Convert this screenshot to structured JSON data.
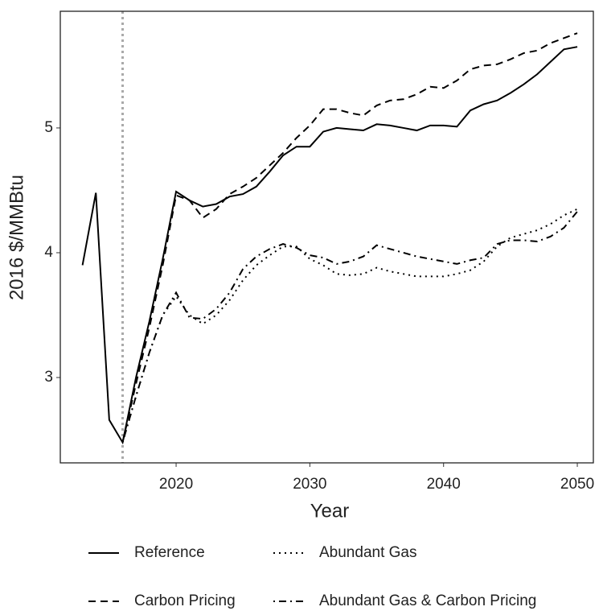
{
  "chart_data": {
    "type": "line",
    "xlabel": "Year",
    "ylabel": "2016 $/MMBtu",
    "x": [
      2013,
      2014,
      2015,
      2016,
      2017,
      2018,
      2019,
      2020,
      2021,
      2022,
      2023,
      2024,
      2025,
      2026,
      2027,
      2028,
      2029,
      2030,
      2031,
      2032,
      2033,
      2034,
      2035,
      2036,
      2037,
      2038,
      2039,
      2040,
      2041,
      2042,
      2043,
      2044,
      2045,
      2046,
      2047,
      2048,
      2049,
      2050
    ],
    "series": [
      {
        "name": "Reference",
        "color": "#000000",
        "dash": "solid",
        "values": [
          3.9,
          4.48,
          2.66,
          2.48,
          3.0,
          3.45,
          3.95,
          4.49,
          4.42,
          4.37,
          4.39,
          4.45,
          4.47,
          4.53,
          4.65,
          4.78,
          4.85,
          4.85,
          4.97,
          5.0,
          4.99,
          4.98,
          5.03,
          5.02,
          5.0,
          4.98,
          5.02,
          5.02,
          5.01,
          5.14,
          5.19,
          5.22,
          5.28,
          5.35,
          5.43,
          5.53,
          5.63,
          5.65
        ]
      },
      {
        "name": "Abundant Gas",
        "color": "#000000",
        "dash": "dotted",
        "values": [
          null,
          null,
          null,
          2.48,
          2.85,
          3.2,
          3.5,
          3.65,
          3.5,
          3.43,
          3.5,
          3.62,
          3.78,
          3.9,
          3.98,
          4.05,
          4.05,
          3.95,
          3.9,
          3.83,
          3.82,
          3.83,
          3.88,
          3.85,
          3.83,
          3.81,
          3.81,
          3.81,
          3.83,
          3.86,
          3.93,
          4.05,
          4.12,
          4.15,
          4.18,
          4.23,
          4.3,
          4.35
        ]
      },
      {
        "name": "Carbon Pricing",
        "color": "#000000",
        "dash": "dashed",
        "values": [
          null,
          null,
          null,
          2.48,
          2.95,
          3.4,
          3.9,
          4.46,
          4.42,
          4.28,
          4.35,
          4.47,
          4.53,
          4.6,
          4.7,
          4.8,
          4.92,
          5.02,
          5.15,
          5.15,
          5.12,
          5.1,
          5.18,
          5.22,
          5.23,
          5.27,
          5.33,
          5.32,
          5.38,
          5.47,
          5.5,
          5.51,
          5.55,
          5.6,
          5.62,
          5.68,
          5.72,
          5.76
        ]
      },
      {
        "name": "Abundant Gas & Carbon Pricing",
        "color": "#000000",
        "dash": "dotdash",
        "values": [
          null,
          null,
          null,
          2.48,
          2.85,
          3.2,
          3.5,
          3.68,
          3.48,
          3.47,
          3.55,
          3.68,
          3.87,
          3.97,
          4.03,
          4.07,
          4.04,
          3.98,
          3.96,
          3.91,
          3.93,
          3.97,
          4.06,
          4.03,
          4.0,
          3.97,
          3.95,
          3.93,
          3.91,
          3.94,
          3.96,
          4.07,
          4.1,
          4.1,
          4.09,
          4.13,
          4.2,
          4.33
        ]
      }
    ],
    "xlim": [
      2011.34,
      2051.2
    ],
    "xticks": [
      2020,
      2030,
      2040,
      2050
    ],
    "ylim": [
      2.316,
      5.935
    ],
    "yticks": [
      3,
      4,
      5
    ],
    "vline": 2016,
    "vline_color": "#aaaaaa",
    "grid": false,
    "legend": "bottom"
  }
}
